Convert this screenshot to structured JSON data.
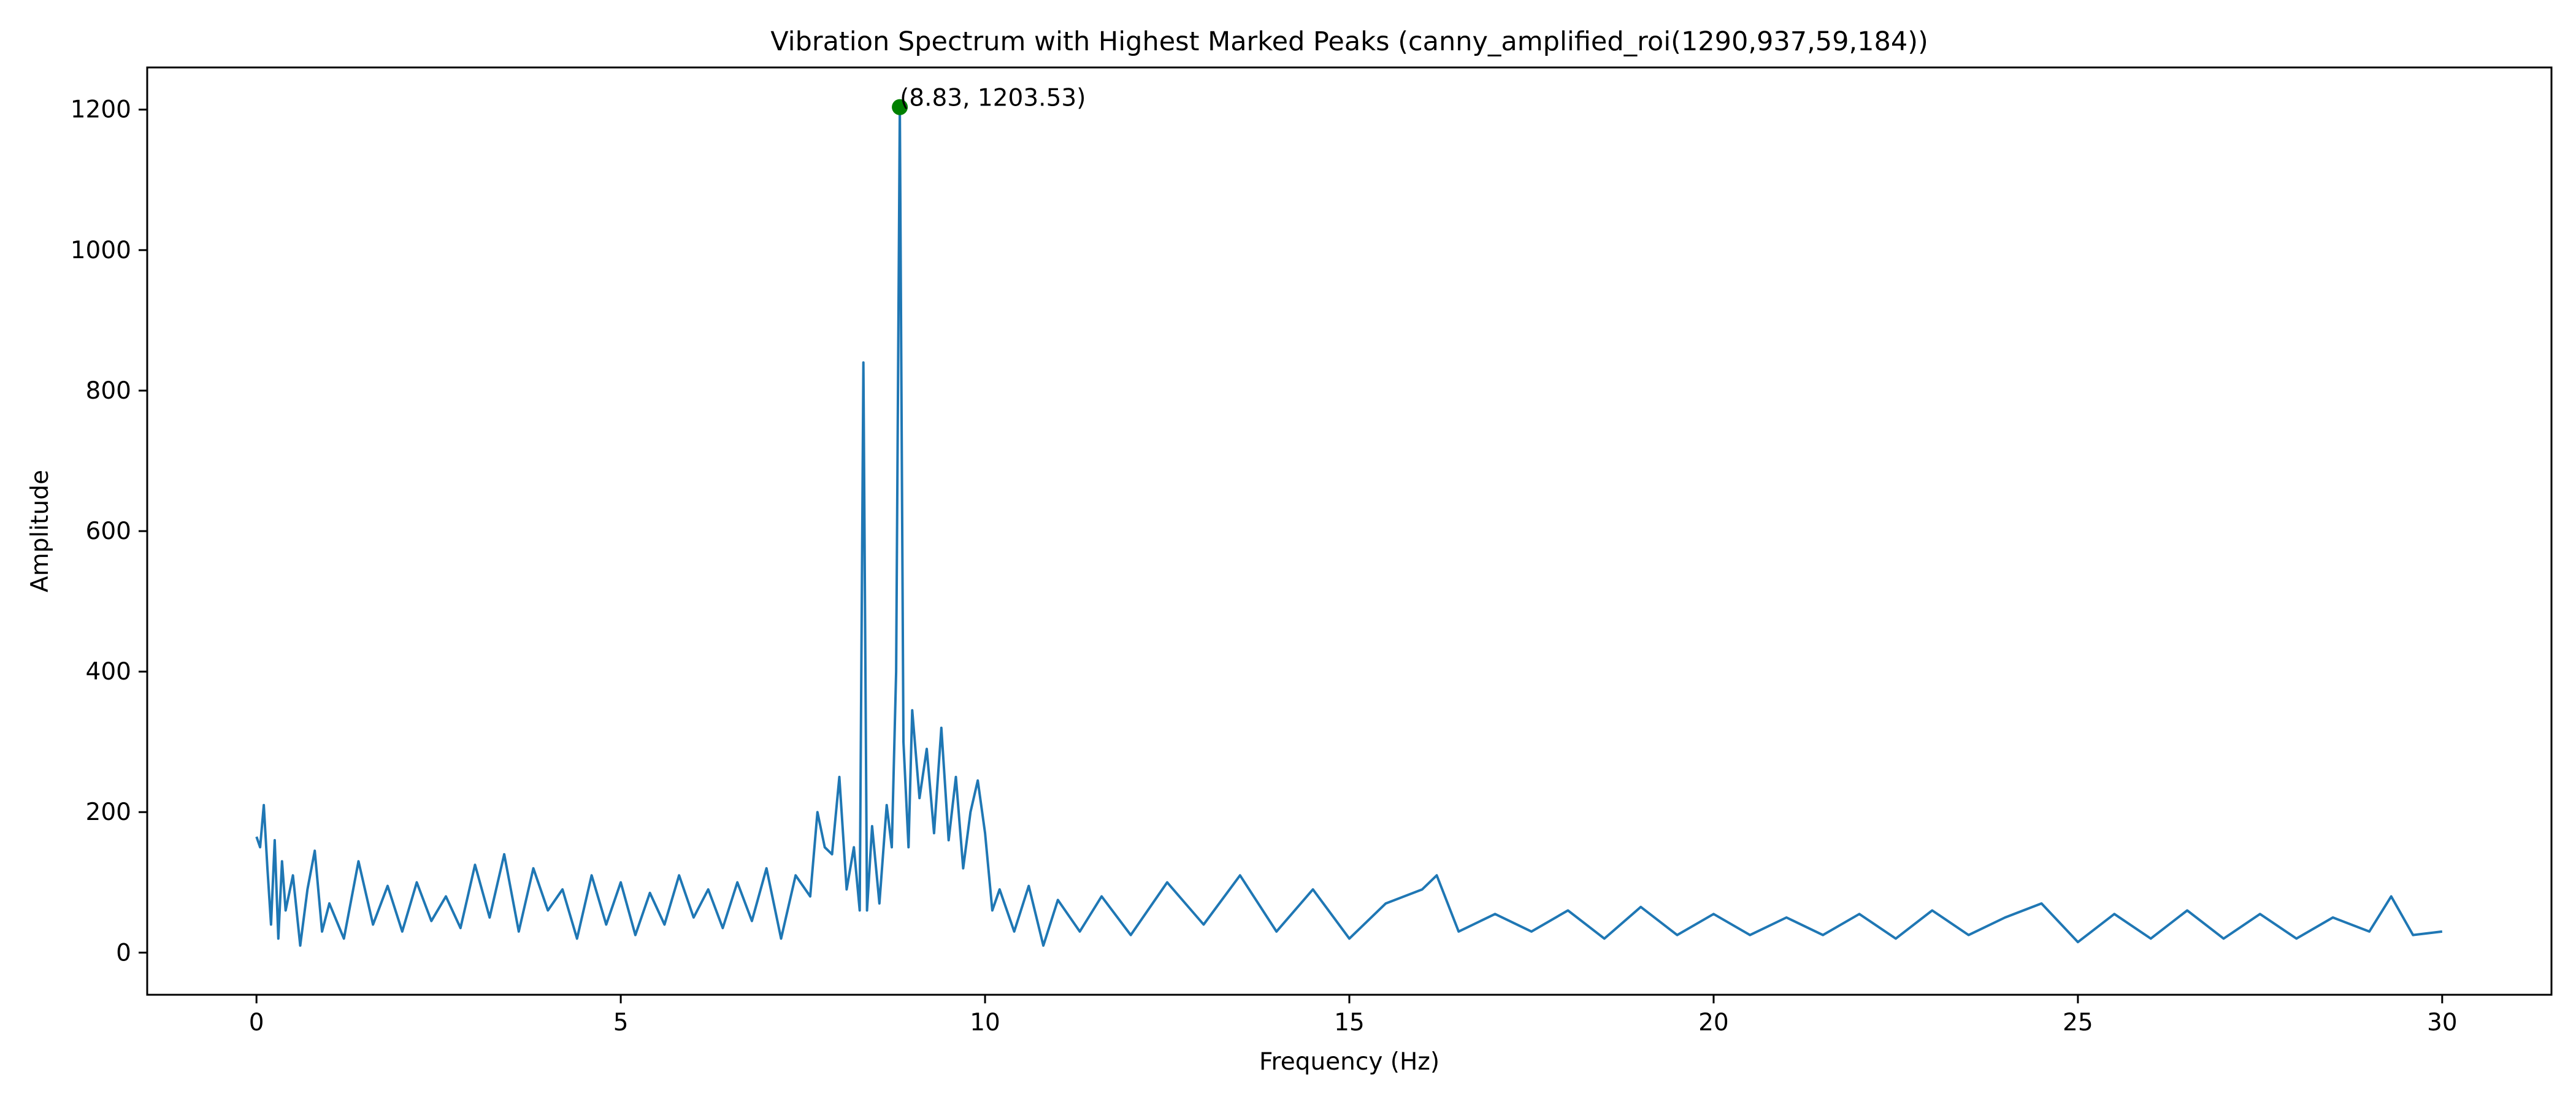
{
  "chart_data": {
    "type": "line",
    "title": "Vibration Spectrum with Highest Marked Peaks (canny_amplified_roi(1290,937,59,184))",
    "xlabel": "Frequency (Hz)",
    "ylabel": "Amplitude",
    "xlim": [
      -1.5,
      31.5
    ],
    "ylim": [
      -60,
      1260
    ],
    "x_ticks": [
      0,
      5,
      10,
      15,
      20,
      25,
      30
    ],
    "x_tick_labels": [
      "0",
      "5",
      "10",
      "15",
      "20",
      "25",
      "30"
    ],
    "y_ticks": [
      0,
      200,
      400,
      600,
      800,
      1000,
      1200
    ],
    "y_tick_labels": [
      "0",
      "200",
      "400",
      "600",
      "800",
      "1000",
      "1200"
    ],
    "grid": false,
    "legend": false,
    "line_color": "#1f77b4",
    "marker_color": "#008000",
    "series": [
      {
        "x": [
          0.0,
          0.05,
          0.1,
          0.15,
          0.2,
          0.25,
          0.3,
          0.35,
          0.4,
          0.5,
          0.6,
          0.7,
          0.8,
          0.9,
          1.0,
          1.2,
          1.4,
          1.6,
          1.8,
          2.0,
          2.2,
          2.4,
          2.6,
          2.8,
          3.0,
          3.2,
          3.4,
          3.6,
          3.8,
          4.0,
          4.2,
          4.4,
          4.6,
          4.8,
          5.0,
          5.2,
          5.4,
          5.6,
          5.8,
          6.0,
          6.2,
          6.4,
          6.6,
          6.8,
          7.0,
          7.2,
          7.4,
          7.6,
          7.7,
          7.8,
          7.9,
          8.0,
          8.1,
          8.2,
          8.28,
          8.33,
          8.38,
          8.45,
          8.55,
          8.65,
          8.72,
          8.78,
          8.83,
          8.88,
          8.95,
          9.0,
          9.1,
          9.2,
          9.3,
          9.4,
          9.5,
          9.6,
          9.7,
          9.8,
          9.9,
          10.0,
          10.1,
          10.2,
          10.4,
          10.6,
          10.8,
          11.0,
          11.3,
          11.6,
          12.0,
          12.5,
          13.0,
          13.5,
          14.0,
          14.5,
          15.0,
          15.5,
          16.0,
          16.2,
          16.5,
          17.0,
          17.5,
          18.0,
          18.5,
          19.0,
          19.5,
          20.0,
          20.5,
          21.0,
          21.5,
          22.0,
          22.5,
          23.0,
          23.5,
          24.0,
          24.5,
          25.0,
          25.5,
          26.0,
          26.5,
          27.0,
          27.5,
          28.0,
          28.5,
          29.0,
          29.3,
          29.6,
          30.0
        ],
        "y": [
          165,
          150,
          210,
          120,
          40,
          160,
          20,
          130,
          60,
          110,
          10,
          90,
          145,
          30,
          70,
          20,
          130,
          40,
          95,
          30,
          100,
          45,
          80,
          35,
          125,
          50,
          140,
          30,
          120,
          60,
          90,
          20,
          110,
          40,
          100,
          25,
          85,
          40,
          110,
          50,
          90,
          35,
          100,
          45,
          120,
          20,
          110,
          80,
          200,
          150,
          140,
          250,
          90,
          150,
          60,
          840,
          60,
          180,
          70,
          210,
          150,
          400,
          1203.53,
          300,
          150,
          345,
          220,
          290,
          170,
          320,
          160,
          250,
          120,
          200,
          245,
          170,
          60,
          90,
          30,
          95,
          10,
          75,
          30,
          80,
          25,
          100,
          40,
          110,
          30,
          90,
          20,
          70,
          90,
          110,
          30,
          55,
          30,
          60,
          20,
          65,
          25,
          55,
          25,
          50,
          25,
          55,
          20,
          60,
          25,
          50,
          70,
          15,
          55,
          20,
          60,
          20,
          55,
          20,
          50,
          30,
          80,
          25,
          30
        ]
      }
    ],
    "annotations": [
      {
        "x": 8.83,
        "y": 1203.53,
        "text": "(8.83, 1203.53)"
      }
    ]
  }
}
